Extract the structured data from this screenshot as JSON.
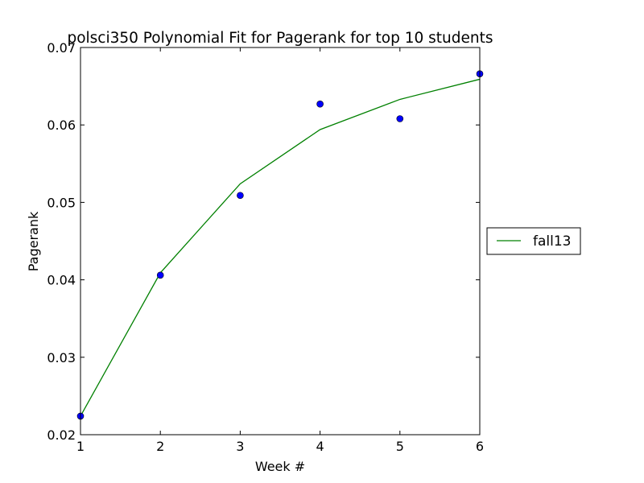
{
  "chart_data": {
    "type": "scatter",
    "title": "polsci350 Polynomial Fit for Pagerank for top 10 students",
    "xlabel": "Week #",
    "ylabel": "Pagerank",
    "xlim": [
      1,
      6
    ],
    "ylim": [
      0.02,
      0.07
    ],
    "xticks": [
      "1",
      "2",
      "3",
      "4",
      "5",
      "6"
    ],
    "yticks": [
      "0.02",
      "0.03",
      "0.04",
      "0.05",
      "0.06",
      "0.07"
    ],
    "grid": false,
    "legend_position": "right-center",
    "colors": {
      "points": "#0000ff",
      "fit": "#008000"
    },
    "points": {
      "x": [
        1,
        2,
        3,
        4,
        5,
        6
      ],
      "y": [
        0.0224,
        0.0406,
        0.0509,
        0.0627,
        0.0608,
        0.0666
      ]
    },
    "series": [
      {
        "name": "fall13",
        "kind": "line",
        "x": [
          1,
          2,
          3,
          4,
          5,
          6
        ],
        "y": [
          0.0224,
          0.0409,
          0.0524,
          0.0594,
          0.0633,
          0.0659
        ]
      }
    ]
  }
}
